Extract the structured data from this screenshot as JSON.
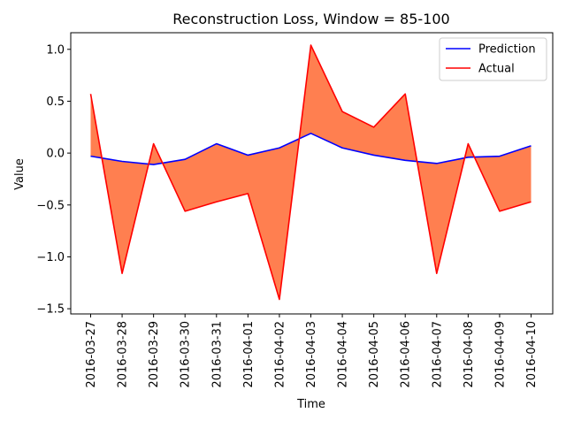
{
  "chart_data": {
    "type": "line",
    "title": "Reconstruction Loss, Window = 85-100",
    "xlabel": "Time",
    "ylabel": "Value",
    "categories": [
      "2016-03-27",
      "2016-03-28",
      "2016-03-29",
      "2016-03-30",
      "2016-03-31",
      "2016-04-01",
      "2016-04-02",
      "2016-04-03",
      "2016-04-04",
      "2016-04-05",
      "2016-04-06",
      "2016-04-07",
      "2016-04-08",
      "2016-04-09",
      "2016-04-10"
    ],
    "series": [
      {
        "name": "Prediction",
        "color": "#0000ff",
        "values": [
          -0.03,
          -0.08,
          -0.11,
          -0.06,
          0.09,
          -0.02,
          0.05,
          0.19,
          0.05,
          -0.02,
          -0.07,
          -0.1,
          -0.04,
          -0.03,
          0.07
        ]
      },
      {
        "name": "Actual",
        "color": "#ff0000",
        "values": [
          0.57,
          -1.16,
          0.09,
          -0.56,
          -0.47,
          -0.39,
          -1.41,
          1.04,
          0.4,
          0.25,
          0.57,
          -1.16,
          0.09,
          -0.56,
          -0.47
        ]
      }
    ],
    "fill_between": {
      "color": "#ff7f50",
      "series": [
        "Prediction",
        "Actual"
      ]
    },
    "ylim": [
      -1.55,
      1.16
    ],
    "yticks": [
      -1.5,
      -1.0,
      -0.5,
      0.0,
      0.5,
      1.0
    ],
    "ytick_labels": [
      "−1.5",
      "−1.0",
      "−0.5",
      "0.0",
      "0.5",
      "1.0"
    ],
    "grid": false,
    "legend_position": "top-right"
  }
}
